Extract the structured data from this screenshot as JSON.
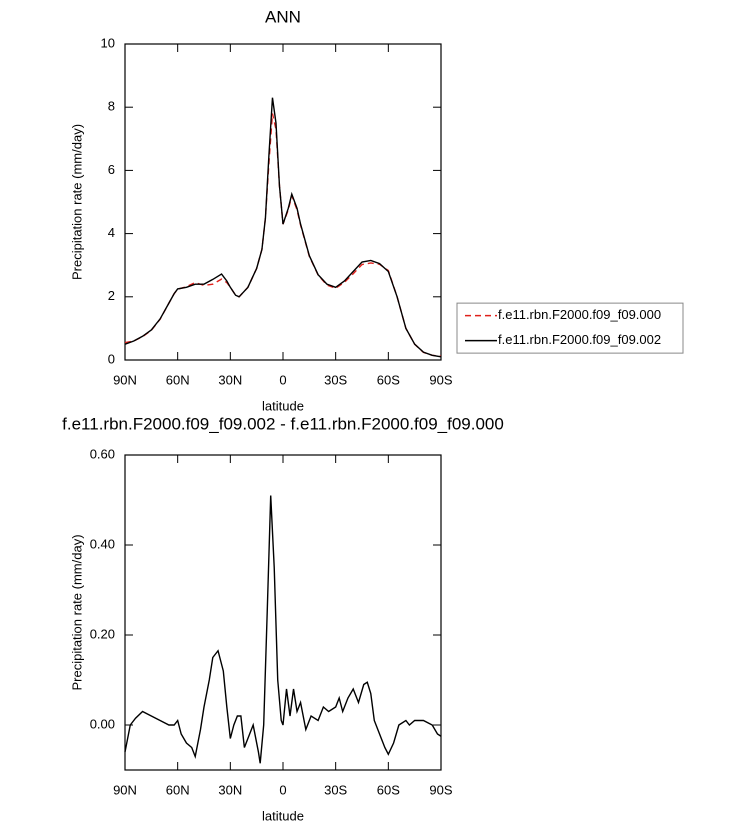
{
  "chart_data": [
    {
      "type": "line",
      "title": "ANN",
      "x_label": "latitude",
      "y_label": "Precipitation rate (mm/day)",
      "x": [
        90,
        85,
        80,
        75,
        70,
        65,
        62,
        60,
        55,
        50,
        45,
        40,
        35,
        32,
        30,
        27,
        25,
        20,
        15,
        12,
        10,
        8,
        6,
        4,
        2,
        0,
        -3,
        -5,
        -8,
        -10,
        -15,
        -20,
        -25,
        -30,
        -35,
        -40,
        -45,
        -50,
        -55,
        -60,
        -65,
        -70,
        -75,
        -80,
        -85,
        -90
      ],
      "series": [
        {
          "name": "f.e11.rbn.F2000.f09_f09.000",
          "color": "#e0201b",
          "dashed": true,
          "values": [
            0.55,
            0.6,
            0.74,
            0.94,
            1.29,
            1.8,
            2.1,
            2.24,
            2.32,
            2.45,
            2.36,
            2.4,
            2.56,
            2.45,
            2.3,
            2.05,
            2.0,
            2.3,
            2.9,
            3.5,
            4.5,
            6.25,
            7.8,
            7.3,
            5.5,
            4.3,
            4.75,
            5.2,
            4.75,
            4.27,
            3.28,
            2.69,
            2.37,
            2.27,
            2.46,
            2.73,
            3.02,
            3.07,
            3.03,
            2.83,
            2.0,
            1.0,
            0.5,
            0.24,
            0.15,
            0.12
          ]
        },
        {
          "name": "f.e11.rbn.F2000.f09_f09.002",
          "color": "#000000",
          "dashed": false,
          "values": [
            0.5,
            0.6,
            0.75,
            0.95,
            1.3,
            1.8,
            2.1,
            2.25,
            2.3,
            2.4,
            2.4,
            2.55,
            2.72,
            2.5,
            2.3,
            2.05,
            2.0,
            2.3,
            2.9,
            3.5,
            4.5,
            6.5,
            8.3,
            7.5,
            5.5,
            4.3,
            4.8,
            5.25,
            4.8,
            4.3,
            3.3,
            2.7,
            2.4,
            2.3,
            2.5,
            2.8,
            3.1,
            3.15,
            3.05,
            2.8,
            2.0,
            1.0,
            0.5,
            0.25,
            0.15,
            0.1
          ]
        }
      ],
      "xlim": [
        90,
        -90
      ],
      "xticks": [
        {
          "value": 90,
          "label": "90N"
        },
        {
          "value": 60,
          "label": "60N"
        },
        {
          "value": 30,
          "label": "30N"
        },
        0,
        {
          "value": -30,
          "label": "30S"
        },
        {
          "value": -60,
          "label": "60S"
        },
        {
          "value": -90,
          "label": "90S"
        }
      ],
      "ylim": [
        0,
        10
      ],
      "yticks": [
        0,
        2,
        4,
        6,
        8,
        10
      ],
      "legend": "right"
    },
    {
      "type": "line",
      "title": "f.e11.rbn.F2000.f09_f09.002 - f.e11.rbn.F2000.f09_f09.000",
      "x_label": "latitude",
      "y_label": "Precipitation rate (mm/day)",
      "x": [
        90,
        87,
        84,
        80,
        75,
        70,
        65,
        62,
        60,
        58,
        55,
        52,
        50,
        47,
        45,
        42,
        40,
        37,
        34,
        32,
        30,
        28,
        26,
        24,
        22,
        20,
        17,
        14,
        13,
        11,
        9,
        7,
        5,
        3,
        1,
        0,
        -2,
        -4,
        -6,
        -8,
        -10,
        -13,
        -16,
        -20,
        -23,
        -26,
        -30,
        -32,
        -34,
        -37,
        -40,
        -43,
        -46,
        -48,
        -50,
        -52,
        -55,
        -58,
        -60,
        -63,
        -66,
        -70,
        -72,
        -75,
        -80,
        -85,
        -88,
        -90
      ],
      "series": [
        {
          "color": "#000000",
          "dashed": false,
          "values": [
            -0.06,
            0.0,
            0.015,
            0.03,
            0.02,
            0.01,
            0.0,
            0.0,
            0.01,
            -0.02,
            -0.04,
            -0.05,
            -0.07,
            -0.01,
            0.04,
            0.1,
            0.15,
            0.165,
            0.12,
            0.04,
            -0.03,
            0.0,
            0.02,
            0.02,
            -0.05,
            -0.03,
            0.0,
            -0.06,
            -0.085,
            0.0,
            0.25,
            0.51,
            0.35,
            0.1,
            0.01,
            0.0,
            0.08,
            0.02,
            0.08,
            0.03,
            0.05,
            -0.01,
            0.02,
            0.01,
            0.04,
            0.03,
            0.04,
            0.06,
            0.03,
            0.06,
            0.08,
            0.05,
            0.09,
            0.095,
            0.07,
            0.01,
            -0.02,
            -0.05,
            -0.065,
            -0.04,
            0.0,
            0.01,
            0.0,
            0.01,
            0.01,
            0.0,
            -0.02,
            -0.025
          ]
        }
      ],
      "xlim": [
        90,
        -90
      ],
      "xticks": [
        {
          "value": 90,
          "label": "90N"
        },
        {
          "value": 60,
          "label": "60N"
        },
        {
          "value": 30,
          "label": "30N"
        },
        0,
        {
          "value": -30,
          "label": "30S"
        },
        {
          "value": -60,
          "label": "60S"
        },
        {
          "value": -90,
          "label": "90S"
        }
      ],
      "ylim": [
        -0.1,
        0.6
      ],
      "yticks": [
        {
          "value": 0,
          "label": "0.00"
        },
        {
          "value": 0.2,
          "label": "0.20"
        },
        {
          "value": 0.4,
          "label": "0.40"
        },
        {
          "value": 0.6,
          "label": "0.60"
        }
      ]
    }
  ]
}
